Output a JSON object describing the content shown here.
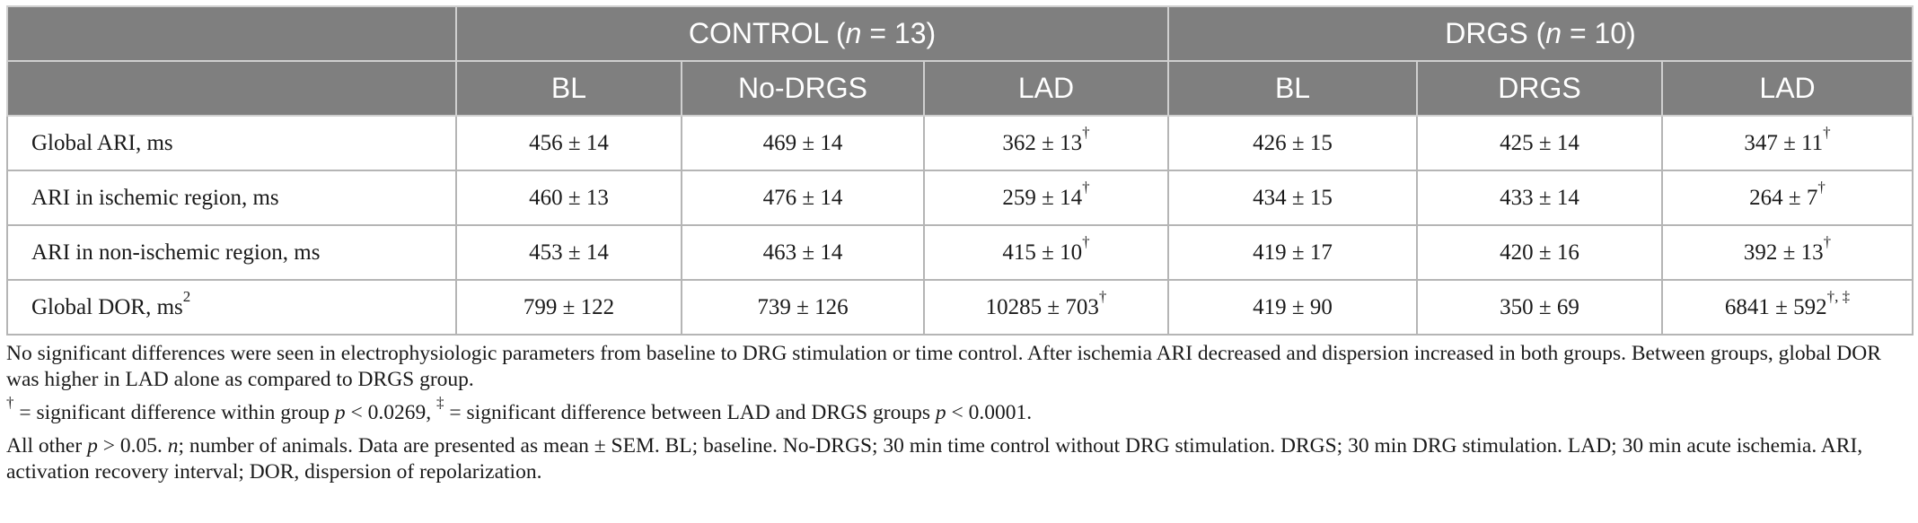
{
  "table": {
    "groups": [
      {
        "label": "CONTROL (",
        "n_symbol": "n",
        "n_rest": " = 13)"
      },
      {
        "label": "DRGS (",
        "n_symbol": "n",
        "n_rest": " = 10)"
      }
    ],
    "subheaders": [
      "BL",
      "No-DRGS",
      "LAD",
      "BL",
      "DRGS",
      "LAD"
    ],
    "rows": [
      {
        "label": "Global ARI, ms",
        "label_sup": "",
        "cells": [
          {
            "v": "456 ± 14",
            "sup": ""
          },
          {
            "v": "469 ± 14",
            "sup": ""
          },
          {
            "v": "362 ± 13",
            "sup": "†"
          },
          {
            "v": "426 ± 15",
            "sup": ""
          },
          {
            "v": "425 ± 14",
            "sup": ""
          },
          {
            "v": "347 ± 11",
            "sup": "†"
          }
        ]
      },
      {
        "label": "ARI in ischemic region, ms",
        "label_sup": "",
        "cells": [
          {
            "v": "460 ± 13",
            "sup": ""
          },
          {
            "v": "476 ± 14",
            "sup": ""
          },
          {
            "v": "259 ± 14",
            "sup": "†"
          },
          {
            "v": "434 ± 15",
            "sup": ""
          },
          {
            "v": "433 ± 14",
            "sup": ""
          },
          {
            "v": "264 ± 7",
            "sup": "†"
          }
        ]
      },
      {
        "label": "ARI in non-ischemic region, ms",
        "label_sup": "",
        "cells": [
          {
            "v": "453 ± 14",
            "sup": ""
          },
          {
            "v": "463 ± 14",
            "sup": ""
          },
          {
            "v": "415 ± 10",
            "sup": "†"
          },
          {
            "v": "419 ± 17",
            "sup": ""
          },
          {
            "v": "420 ± 16",
            "sup": ""
          },
          {
            "v": "392 ± 13",
            "sup": "†"
          }
        ]
      },
      {
        "label": "Global DOR, ms",
        "label_sup": "2",
        "cells": [
          {
            "v": "799 ± 122",
            "sup": ""
          },
          {
            "v": "739 ± 126",
            "sup": ""
          },
          {
            "v": "10285 ± 703",
            "sup": "†"
          },
          {
            "v": "419 ± 90",
            "sup": ""
          },
          {
            "v": "350 ± 69",
            "sup": ""
          },
          {
            "v": "6841 ± 592",
            "sup": "†, ‡"
          }
        ]
      }
    ]
  },
  "notes": {
    "p1": "No significant differences were seen in electrophysiologic parameters from baseline to DRG stimulation or time control. After ischemia ARI decreased and dispersion increased in both groups. Between groups, global DOR was higher in LAD alone as compared to DRGS group.",
    "p2": {
      "dagger": "†",
      "t1": " = significant difference within group ",
      "p_sym1": "p",
      "t2": " < 0.0269, ",
      "ddagger": "‡",
      "t3": " = significant difference between LAD and DRGS groups ",
      "p_sym2": "p",
      "t4": " < 0.0001."
    },
    "p3": {
      "t1": "All other ",
      "p_sym": "p",
      "t2": " > 0.05. ",
      "n_sym": "n",
      "t3": "; number of animals. Data are presented as mean ± SEM. BL; baseline. No-DRGS; 30 min time control without DRG stimulation. DRGS; 30 min DRG stimulation. LAD; 30 min acute ischemia. ARI, activation recovery interval; DOR, dispersion of repolarization."
    }
  }
}
